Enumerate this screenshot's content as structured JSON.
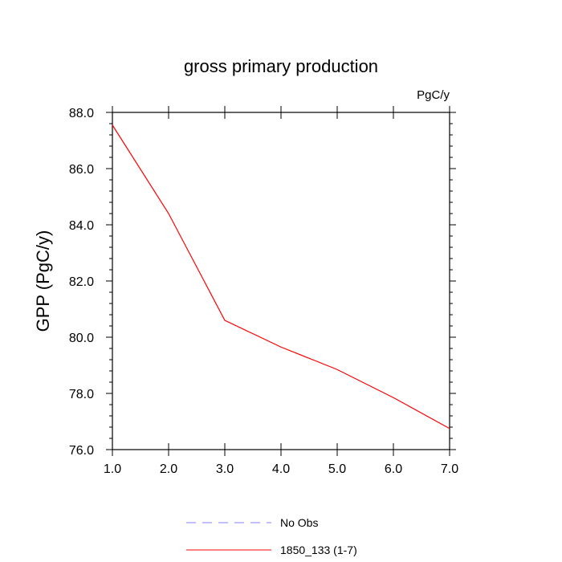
{
  "chart_data": {
    "type": "line",
    "title": "gross primary production",
    "units_label": "PgC/y",
    "xlabel": "",
    "ylabel": "GPP  (PgC/y)",
    "xlim": [
      1.0,
      7.0
    ],
    "ylim": [
      76.0,
      88.0
    ],
    "x_ticks": [
      1.0,
      2.0,
      3.0,
      4.0,
      5.0,
      6.0,
      7.0
    ],
    "x_tick_labels": [
      "1.0",
      "2.0",
      "3.0",
      "4.0",
      "5.0",
      "6.0",
      "7.0"
    ],
    "y_ticks": [
      76.0,
      78.0,
      80.0,
      82.0,
      84.0,
      86.0,
      88.0
    ],
    "y_tick_labels": [
      "76.0",
      "78.0",
      "80.0",
      "82.0",
      "84.0",
      "86.0",
      "88.0"
    ],
    "grid": false,
    "legend_position": "bottom",
    "series": [
      {
        "name": "1850_133 (1-7)",
        "color": "#ff0000",
        "dash": "solid",
        "x": [
          1,
          2,
          3,
          4,
          5,
          6,
          7
        ],
        "values": [
          87.55,
          84.4,
          80.6,
          79.65,
          78.85,
          77.85,
          76.75
        ]
      },
      {
        "name": "No Obs",
        "color": "#8080ff",
        "dash": "dashed",
        "x": [],
        "values": []
      }
    ]
  }
}
